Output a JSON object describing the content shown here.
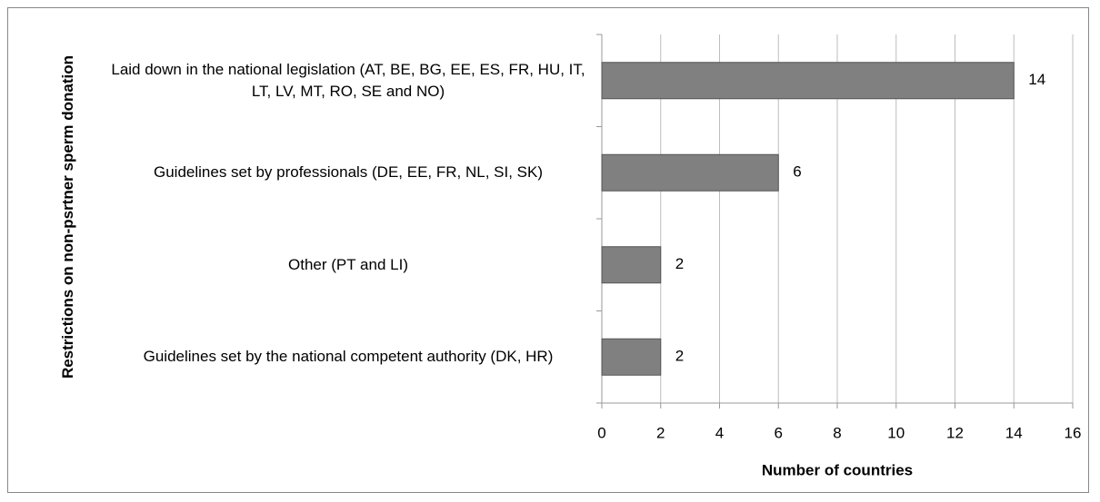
{
  "chart_data": {
    "type": "barh",
    "categories": [
      "Laid down in the national legislation (AT, BE, BG, EE, ES, FR, HU, IT, LT, LV, MT, RO, SE and NO)",
      "Guidelines set by professionals (DE, EE, FR, NL, SI, SK)",
      "Other (PT and LI)",
      "Guidelines set by the national competent authority (DK, HR)"
    ],
    "values": [
      14,
      6,
      2,
      2
    ],
    "color": "#808080",
    "x_label": "Number of countries",
    "y_label": "Restrictions on non-psrtner sperm donation",
    "xlim": [
      0,
      16
    ],
    "xticks": [
      0,
      2,
      4,
      6,
      8,
      10,
      12,
      14,
      16
    ],
    "grid": true
  }
}
